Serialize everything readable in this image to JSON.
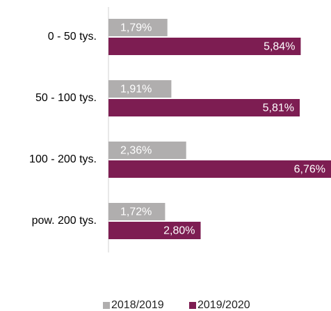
{
  "chart_data": {
    "type": "hbar",
    "categories": [
      "0 - 50 tys.",
      "50 - 100 tys.",
      "100 - 200 tys.",
      "pow. 200 tys."
    ],
    "series": [
      {
        "name": "2018/2019",
        "color": "#b0aeae",
        "values": [
          1.79,
          1.91,
          2.36,
          1.72
        ],
        "value_labels": [
          "1,79%",
          "1,91%",
          "2,36%",
          "1,72%"
        ]
      },
      {
        "name": "2019/2020",
        "color": "#7d1d52",
        "values": [
          5.84,
          5.81,
          6.76,
          2.8
        ],
        "value_labels": [
          "5,84%",
          "5,81%",
          "6,76%",
          "2,80%"
        ]
      }
    ],
    "legend": "bottom"
  }
}
